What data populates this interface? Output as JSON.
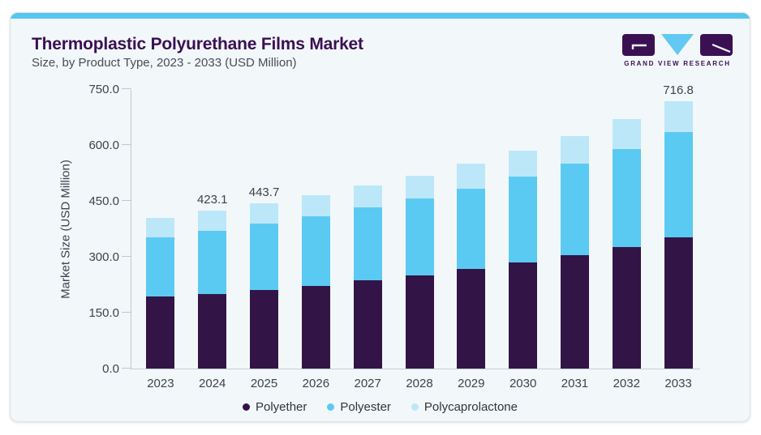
{
  "header": {
    "title": "Thermoplastic Polyurethane Films Market",
    "subtitle": "Size, by Product Type, 2023 - 2033 (USD Million)",
    "brand": "GRAND VIEW RESEARCH"
  },
  "colors": {
    "card_background": "#F2F7FA",
    "accent_bar": "#56C5F0",
    "brand_purple": "#3B1053",
    "logo_triangle_blue": "#62C9F2",
    "axis_text": "#3F424C"
  },
  "chart_data": {
    "type": "bar",
    "stacked": true,
    "title": "Thermoplastic Polyurethane Films Market Size, by Product Type, 2023 - 2033 (USD Million)",
    "categories": [
      "2023",
      "2024",
      "2025",
      "2026",
      "2027",
      "2028",
      "2029",
      "2030",
      "2031",
      "2032",
      "2033"
    ],
    "series": [
      {
        "name": "Polyether",
        "color": "#331447",
        "values": [
          193.0,
          200.0,
          211.0,
          222.0,
          236.0,
          251.0,
          267.0,
          285.0,
          305.0,
          326.0,
          351.4
        ]
      },
      {
        "name": "Polyester",
        "color": "#5BCAF3",
        "values": [
          160.0,
          169.0,
          178.0,
          187.0,
          196.0,
          205.0,
          216.0,
          230.0,
          246.0,
          264.0,
          284.3
        ]
      },
      {
        "name": "Polycaprolactone",
        "color": "#BCE7F9",
        "values": [
          51.0,
          54.1,
          54.7,
          56.0,
          60.0,
          62.0,
          68.0,
          70.0,
          72.0,
          80.0,
          81.1
        ]
      }
    ],
    "totals": [
      404.0,
      423.1,
      443.7,
      465.0,
      492.0,
      518.0,
      551.0,
      585.0,
      623.0,
      670.0,
      716.8
    ],
    "total_labels": {
      "2024": "423.1",
      "2025": "443.7",
      "2033": "716.8"
    },
    "ylabel": "Market Size (USD Million)",
    "yticks": [
      "0.0",
      "150.0",
      "300.0",
      "450.0",
      "600.0",
      "750.0"
    ],
    "ylim": [
      0,
      750
    ],
    "grid": false,
    "legend_position": "bottom"
  }
}
